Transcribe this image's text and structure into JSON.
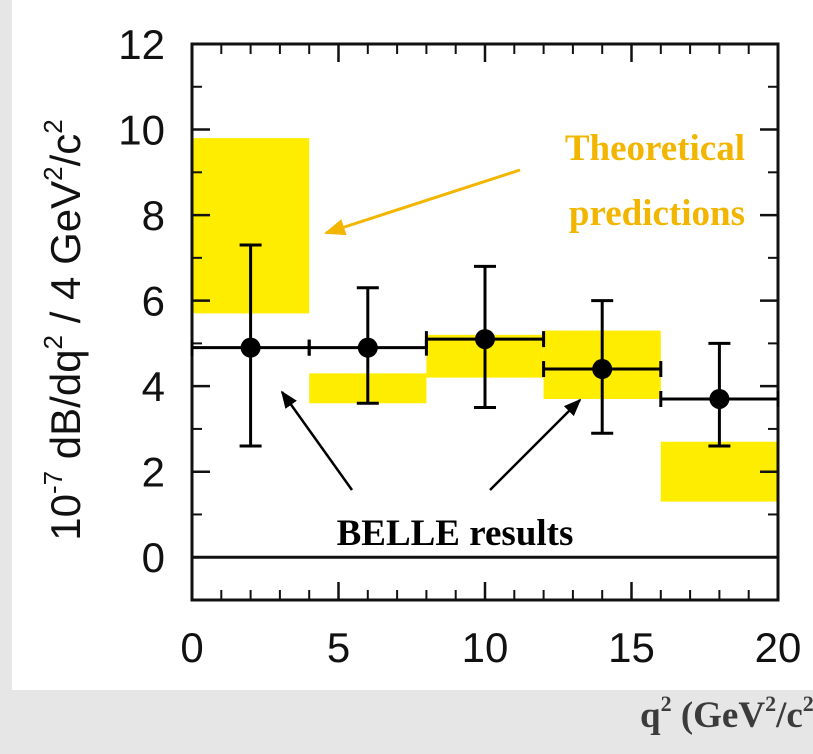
{
  "chart_data": {
    "type": "scatter",
    "ylabel_parts": {
      "prefix": "10",
      "exp": "-7",
      "main": " dB/dq",
      "sq": "2",
      "mid": " / 4 GeV",
      "sq2": "2",
      "suffix": "/c",
      "sq3": "2"
    },
    "xlabel_parts": {
      "q": "q",
      "q_exp": "2",
      "open": " (GeV",
      "g_exp": "2",
      "mid": "/c",
      "c_exp": "2",
      "close": ")"
    },
    "xlim": [
      0,
      20
    ],
    "ylim": [
      -1,
      12
    ],
    "x_ticks": [
      "0",
      "5",
      "10",
      "15",
      "20"
    ],
    "x_tick_values": [
      0,
      5,
      10,
      15,
      20
    ],
    "y_ticks": [
      "0",
      "2",
      "4",
      "6",
      "8",
      "10",
      "12"
    ],
    "y_tick_values": [
      0,
      2,
      4,
      6,
      8,
      10,
      12
    ],
    "grid": false,
    "series": [
      {
        "name": "BELLE results",
        "color": "#000000",
        "points": [
          {
            "x": 2,
            "xlo": 0,
            "xhi": 4,
            "y": 4.9,
            "ylo": 2.6,
            "yhi": 7.3
          },
          {
            "x": 6,
            "xlo": 4,
            "xhi": 8,
            "y": 4.9,
            "ylo": 3.6,
            "yhi": 6.3
          },
          {
            "x": 10,
            "xlo": 8,
            "xhi": 12,
            "y": 5.1,
            "ylo": 3.5,
            "yhi": 6.8
          },
          {
            "x": 14,
            "xlo": 12,
            "xhi": 16,
            "y": 4.4,
            "ylo": 2.9,
            "yhi": 6.0
          },
          {
            "x": 18,
            "xlo": 16,
            "xhi": 20,
            "y": 3.7,
            "ylo": 2.6,
            "yhi": 5.0
          }
        ]
      },
      {
        "name": "Theoretical predictions",
        "color": "#ffed00",
        "bands": [
          {
            "x0": 0,
            "x1": 4,
            "y0": 5.7,
            "y1": 9.8
          },
          {
            "x0": 4,
            "x1": 8,
            "y0": 3.6,
            "y1": 4.3
          },
          {
            "x0": 8,
            "x1": 12,
            "y0": 4.2,
            "y1": 5.2
          },
          {
            "x0": 12,
            "x1": 16,
            "y0": 3.7,
            "y1": 5.3
          },
          {
            "x0": 16,
            "x1": 20,
            "y0": 1.3,
            "y1": 2.7
          }
        ]
      }
    ],
    "annotations": [
      {
        "id": "theory",
        "lines": [
          "Theoretical",
          "predictions"
        ],
        "color": "#f2b600"
      },
      {
        "id": "belle",
        "lines": [
          "BELLE results"
        ],
        "color": "#000000"
      }
    ]
  }
}
